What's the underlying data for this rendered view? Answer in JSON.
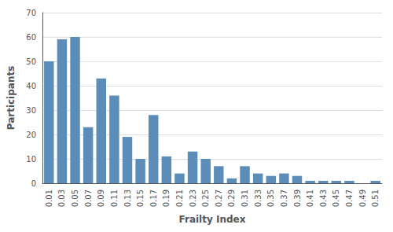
{
  "chart_data": {
    "type": "bar",
    "categories": [
      "0.01",
      "0.03",
      "0.05",
      "0.07",
      "0.09",
      "0.11",
      "0.13",
      "0.15",
      "0.17",
      "0.19",
      "0.21",
      "0.23",
      "0.25",
      "0.27",
      "0.29",
      "0.31",
      "0.33",
      "0.35",
      "0.37",
      "0.39",
      "0.41",
      "0.43",
      "0.45",
      "0.47",
      "0.49",
      "0.51"
    ],
    "values": [
      50,
      59,
      60,
      23,
      43,
      36,
      19,
      10,
      28,
      11,
      4,
      13,
      10,
      7,
      2,
      7,
      4,
      3,
      4,
      3,
      1,
      1,
      1,
      1,
      0,
      1
    ],
    "color": "#5b8db8",
    "xlabel": "Frailty Index",
    "ylabel": "Participants",
    "ylim": [
      0,
      70
    ],
    "yticks": [
      0,
      10,
      20,
      30,
      40,
      50,
      60,
      70
    ],
    "grid": true
  }
}
